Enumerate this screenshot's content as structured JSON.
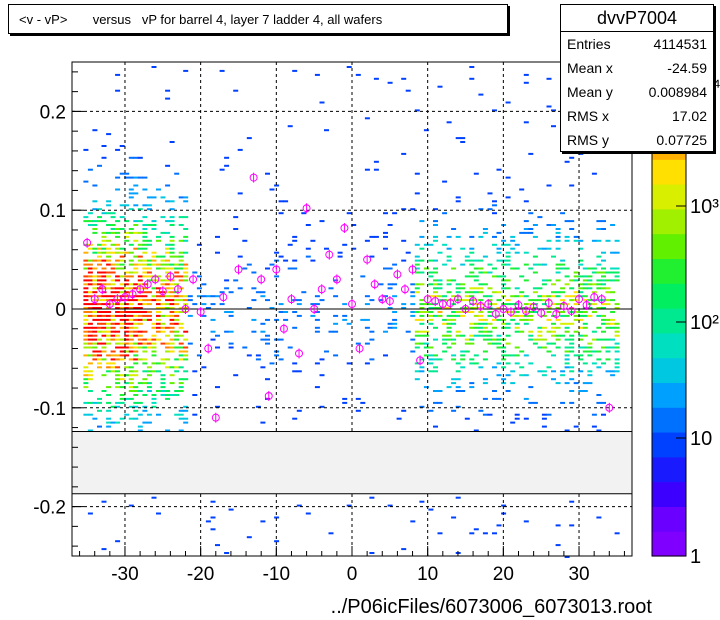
{
  "title": "<v - vP>       versus   vP for barrel 4, layer 7 ladder 4, all wafers",
  "stats": {
    "name": "dvvP7004",
    "rows": [
      {
        "label": "Entries",
        "value": "4114531"
      },
      {
        "label": "Mean x",
        "value": "-24.59"
      },
      {
        "label": "Mean y",
        "value": "0.008984"
      },
      {
        "label": "RMS x",
        "value": "17.02"
      },
      {
        "label": "RMS y",
        "value": "0.07725"
      }
    ]
  },
  "chart_data": {
    "type": "heatmap",
    "title": "<v - vP>       versus   vP for barrel 4, layer 7 ladder 4, all wafers",
    "xlabel": "../P06icFiles/6073006_6073013.root",
    "ylabel": "",
    "xlim": [
      -37,
      37
    ],
    "ylim": [
      -0.25,
      0.25
    ],
    "x_ticks": [
      -30,
      -20,
      -10,
      0,
      10,
      20,
      30
    ],
    "y_ticks": [
      -0.2,
      -0.1,
      0,
      0.1,
      0.2
    ],
    "x_tick_labels": [
      "-30",
      "-20",
      "-10",
      "0",
      "10",
      "20",
      "30"
    ],
    "y_tick_labels": [
      "-0.2",
      "-0.1",
      "0",
      "0.1",
      "0.2"
    ],
    "grid": true,
    "empty_band_y": [
      -0.187,
      -0.124
    ],
    "colorbar": {
      "scale": "log",
      "tick_labels": [
        "1",
        "10",
        "10²",
        "10³",
        "10⁴"
      ],
      "colors": [
        "#8000ff",
        "#6a00ff",
        "#3c00ff",
        "#1a1aff",
        "#0040ff",
        "#0070ff",
        "#00a0ff",
        "#00c8e0",
        "#00e0c0",
        "#00e890",
        "#00ee60",
        "#20f030",
        "#60f000",
        "#a0f000",
        "#d8f000",
        "#ffe000",
        "#ffb000",
        "#ff8000",
        "#ff4000",
        "#ff0000"
      ]
    },
    "profile_points": [
      {
        "x": -35,
        "y": 0.067
      },
      {
        "x": -34,
        "y": 0.01
      },
      {
        "x": -33,
        "y": 0.02
      },
      {
        "x": -32,
        "y": 0.005
      },
      {
        "x": -31,
        "y": 0.01
      },
      {
        "x": -30,
        "y": 0.012
      },
      {
        "x": -29,
        "y": 0.015
      },
      {
        "x": -28,
        "y": 0.02
      },
      {
        "x": -27,
        "y": 0.025
      },
      {
        "x": -26,
        "y": 0.03
      },
      {
        "x": -25,
        "y": 0.018
      },
      {
        "x": -24,
        "y": 0.033
      },
      {
        "x": -23,
        "y": 0.02
      },
      {
        "x": -22,
        "y": 0.0
      },
      {
        "x": -21,
        "y": 0.03
      },
      {
        "x": -20,
        "y": -0.003
      },
      {
        "x": -19,
        "y": -0.04
      },
      {
        "x": -18,
        "y": -0.11
      },
      {
        "x": -17,
        "y": 0.012
      },
      {
        "x": -15,
        "y": 0.04
      },
      {
        "x": -13,
        "y": 0.133
      },
      {
        "x": -12,
        "y": 0.03
      },
      {
        "x": -11,
        "y": -0.088
      },
      {
        "x": -10,
        "y": 0.04
      },
      {
        "x": -9,
        "y": -0.02
      },
      {
        "x": -8,
        "y": 0.01
      },
      {
        "x": -7,
        "y": -0.045
      },
      {
        "x": -6,
        "y": 0.102
      },
      {
        "x": -5,
        "y": 0.0
      },
      {
        "x": -4,
        "y": 0.02
      },
      {
        "x": -3,
        "y": 0.055
      },
      {
        "x": -2,
        "y": 0.03
      },
      {
        "x": -1,
        "y": 0.082
      },
      {
        "x": 0,
        "y": 0.005
      },
      {
        "x": 1,
        "y": -0.04
      },
      {
        "x": 2,
        "y": 0.05
      },
      {
        "x": 3,
        "y": 0.025
      },
      {
        "x": 4,
        "y": 0.01
      },
      {
        "x": 5,
        "y": 0.008
      },
      {
        "x": 6,
        "y": 0.035
      },
      {
        "x": 7,
        "y": 0.02
      },
      {
        "x": 8,
        "y": 0.04
      },
      {
        "x": 9,
        "y": -0.052
      },
      {
        "x": 10,
        "y": 0.01
      },
      {
        "x": 11,
        "y": 0.008
      },
      {
        "x": 12,
        "y": 0.005
      },
      {
        "x": 13,
        "y": 0.006
      },
      {
        "x": 14,
        "y": 0.01
      },
      {
        "x": 15,
        "y": 0.0
      },
      {
        "x": 16,
        "y": 0.008
      },
      {
        "x": 17,
        "y": 0.003
      },
      {
        "x": 18,
        "y": 0.005
      },
      {
        "x": 19,
        "y": -0.005
      },
      {
        "x": 20,
        "y": 0.0
      },
      {
        "x": 21,
        "y": -0.003
      },
      {
        "x": 22,
        "y": 0.004
      },
      {
        "x": 23,
        "y": -0.002
      },
      {
        "x": 24,
        "y": 0.002
      },
      {
        "x": 25,
        "y": -0.004
      },
      {
        "x": 26,
        "y": 0.006
      },
      {
        "x": 27,
        "y": -0.005
      },
      {
        "x": 28,
        "y": 0.003
      },
      {
        "x": 29,
        "y": -0.002
      },
      {
        "x": 30,
        "y": 0.01
      },
      {
        "x": 31,
        "y": 0.004
      },
      {
        "x": 32,
        "y": 0.012
      },
      {
        "x": 33,
        "y": 0.01
      },
      {
        "x": 34,
        "y": -0.1
      }
    ]
  }
}
